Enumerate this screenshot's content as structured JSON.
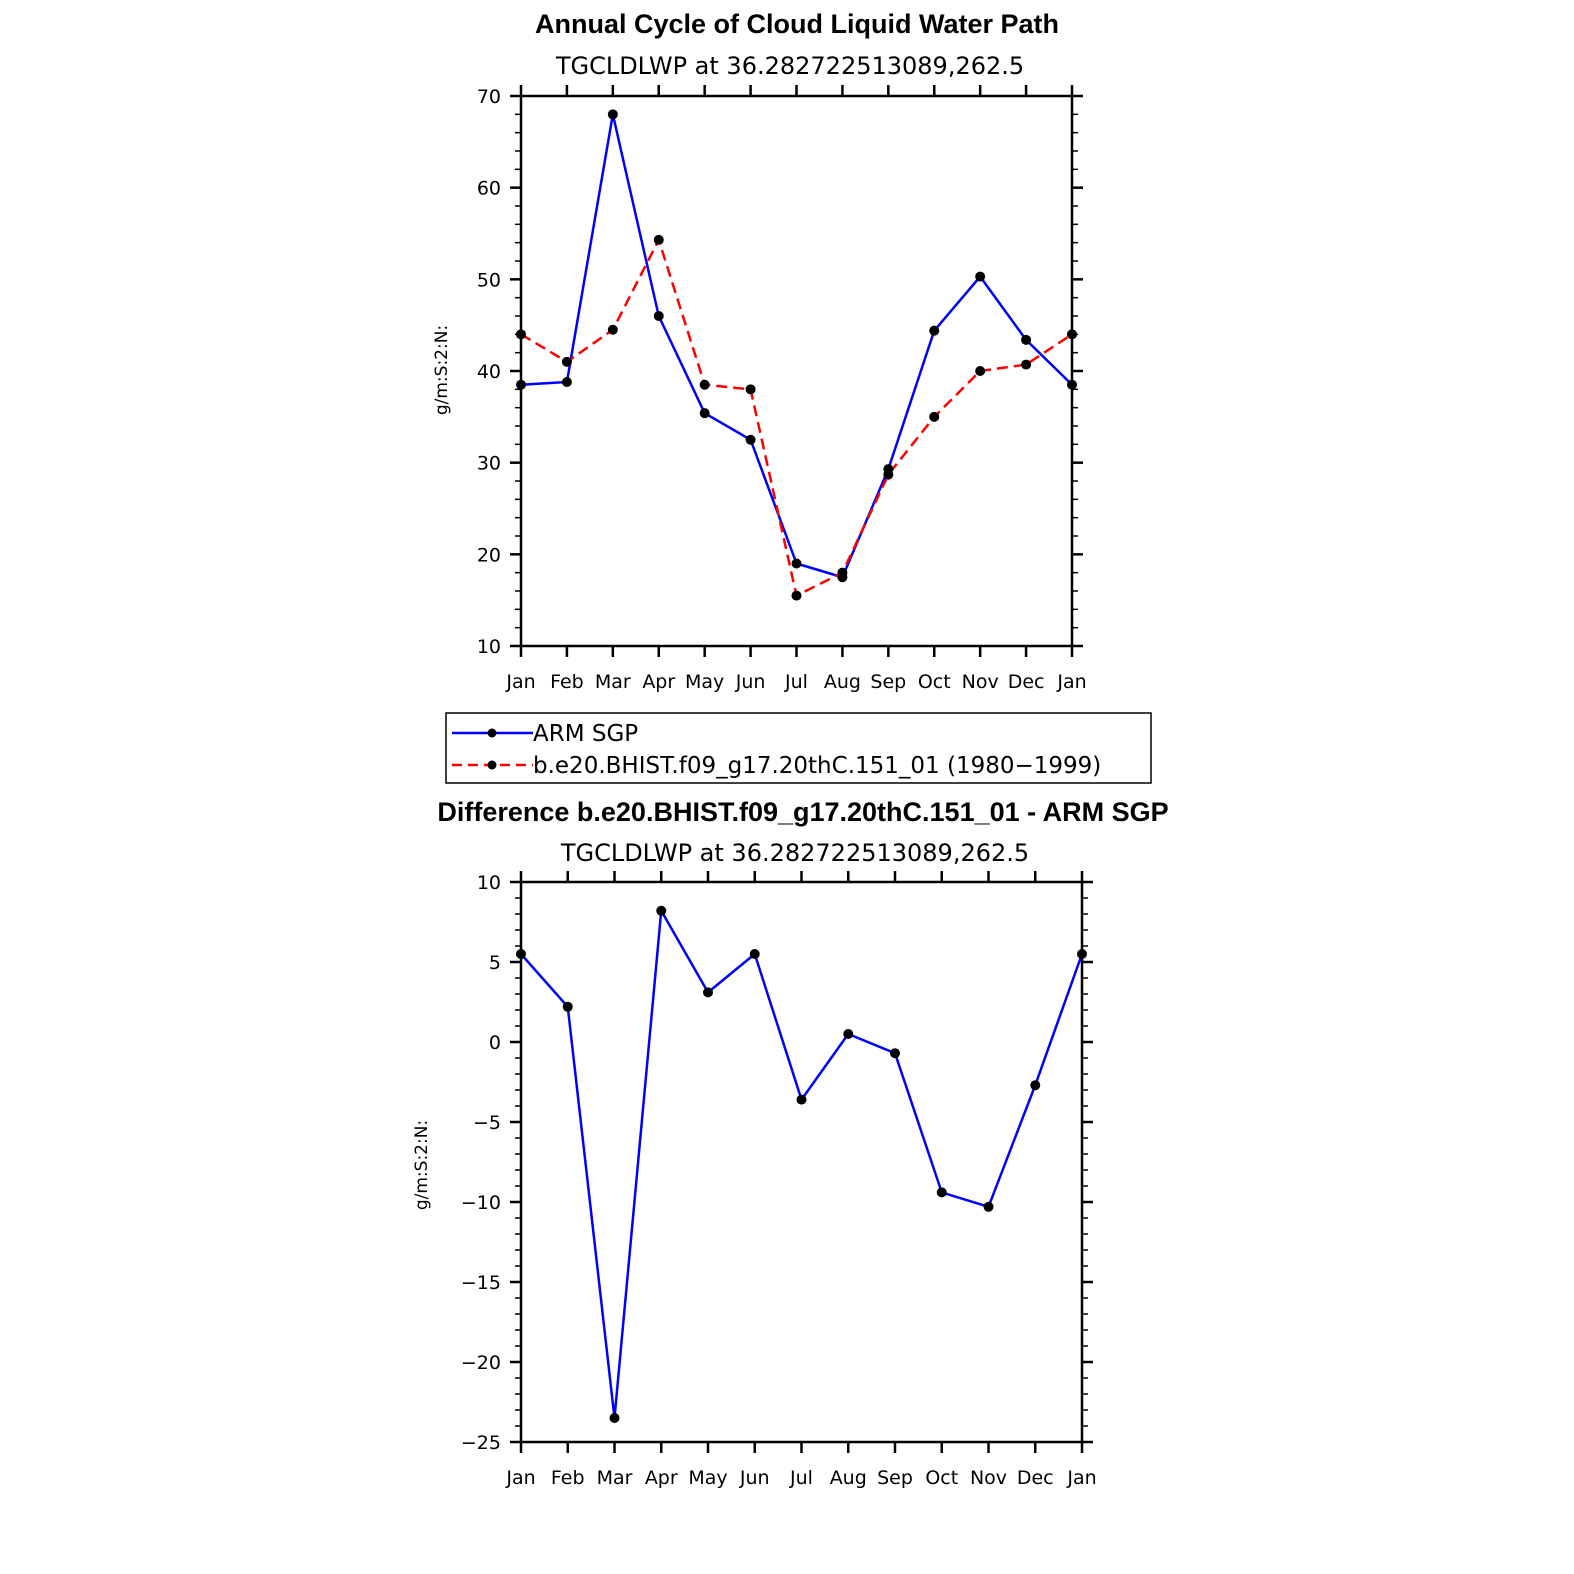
{
  "chart_data": [
    {
      "type": "line",
      "title": "Annual Cycle of Cloud Liquid Water Path",
      "subtitle": "TGCLDLWP at 36.282722513089,262.5",
      "ylabel": "g/m:S:2:N:",
      "xlabel": "",
      "ylim": [
        10,
        70
      ],
      "yticks": [
        "10",
        "20",
        "30",
        "40",
        "50",
        "60",
        "70"
      ],
      "categories": [
        "Jan",
        "Feb",
        "Mar",
        "Apr",
        "May",
        "Jun",
        "Jul",
        "Aug",
        "Sep",
        "Oct",
        "Nov",
        "Dec",
        "Jan"
      ],
      "series": [
        {
          "name": "ARM SGP",
          "color": "#0000ff",
          "dash": "solid",
          "values": [
            38.5,
            38.8,
            68.0,
            46.0,
            35.4,
            32.5,
            19.0,
            17.5,
            29.3,
            44.4,
            50.3,
            43.4,
            38.5
          ]
        },
        {
          "name": "b.e20.BHIST.f09_g17.20thC.151_01 (1980−1999)",
          "color": "#ff0000",
          "dash": "dashed",
          "values": [
            44.0,
            41.0,
            44.5,
            54.3,
            38.5,
            38.0,
            15.5,
            18.0,
            28.7,
            35.0,
            40.0,
            40.7,
            44.0
          ]
        }
      ]
    },
    {
      "type": "line",
      "title": "Difference b.e20.BHIST.f09_g17.20thC.151_01 - ARM SGP",
      "subtitle": "TGCLDLWP at 36.282722513089,262.5",
      "ylabel": "g/m:S:2:N:",
      "xlabel": "",
      "ylim": [
        -25,
        10
      ],
      "yticks": [
        "−25",
        "−20",
        "−15",
        "−10",
        "−5",
        "0",
        "5",
        "10"
      ],
      "categories": [
        "Jan",
        "Feb",
        "Mar",
        "Apr",
        "May",
        "Jun",
        "Jul",
        "Aug",
        "Sep",
        "Oct",
        "Nov",
        "Dec",
        "Jan"
      ],
      "series": [
        {
          "name": "Difference",
          "color": "#0000ff",
          "dash": "solid",
          "values": [
            5.5,
            2.2,
            -23.5,
            8.2,
            3.1,
            5.5,
            -3.6,
            0.5,
            -0.7,
            -9.4,
            -10.3,
            -2.7,
            5.5
          ]
        }
      ]
    }
  ]
}
